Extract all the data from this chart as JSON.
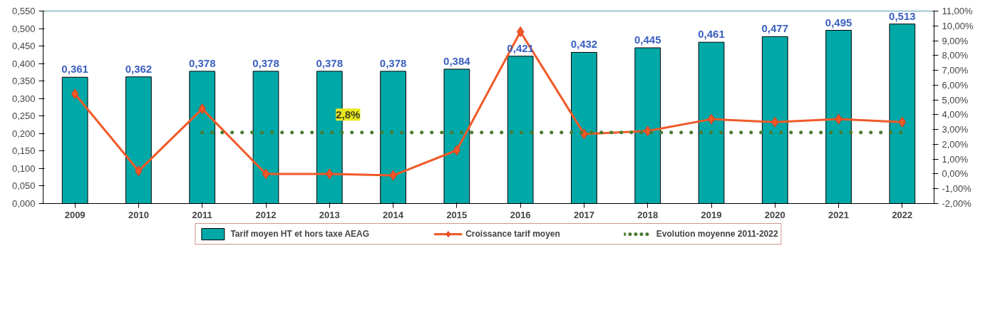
{
  "chart_data": {
    "type": "bar",
    "categories": [
      "2009",
      "2010",
      "2011",
      "2012",
      "2013",
      "2014",
      "2015",
      "2016",
      "2017",
      "2018",
      "2019",
      "2020",
      "2021",
      "2022"
    ],
    "series": [
      {
        "name": "Tarif moyen HT et hors taxe AEAG",
        "type": "bar",
        "color": "#00a8a8",
        "values": [
          0.361,
          0.362,
          0.378,
          0.378,
          0.378,
          0.378,
          0.384,
          0.421,
          0.432,
          0.445,
          0.461,
          0.477,
          0.495,
          0.513
        ],
        "value_labels": [
          "0,361",
          "0,362",
          "0,378",
          "0,378",
          "0,378",
          "0,378",
          "0,384",
          "0,421",
          "0,432",
          "0,445",
          "0,461",
          "0,477",
          "0,495",
          "0,513"
        ]
      },
      {
        "name": "Croissance tarif moyen",
        "type": "line",
        "axis": "y2",
        "color": "#f05a28",
        "marker": "diamond",
        "line_style": "solid",
        "values": [
          5.4,
          0.2,
          4.4,
          0.0,
          0.0,
          -0.1,
          1.6,
          9.6,
          2.7,
          2.9,
          3.7,
          3.5,
          3.7,
          3.5
        ]
      },
      {
        "name": "Evolution moyenne 2011-2022",
        "type": "line",
        "axis": "y2",
        "color": "#4a7a30",
        "marker": "none",
        "line_style": "dotted",
        "values": [
          null,
          null,
          2.8,
          2.8,
          2.8,
          2.8,
          2.8,
          2.8,
          2.8,
          2.8,
          2.8,
          2.8,
          2.8,
          2.8
        ]
      }
    ],
    "annotations": [
      "2,8%"
    ],
    "ylim": [
      0,
      0.55
    ],
    "yticks": [
      {
        "value": 0,
        "label": "0,000"
      },
      {
        "value": 0.05,
        "label": "0,050"
      },
      {
        "value": 0.1,
        "label": "0,100"
      },
      {
        "value": 0.15,
        "label": "0,150"
      },
      {
        "value": 0.2,
        "label": "0,200"
      },
      {
        "value": 0.25,
        "label": "0,250"
      },
      {
        "value": 0.3,
        "label": "0,300"
      },
      {
        "value": 0.35,
        "label": "0,350"
      },
      {
        "value": 0.4,
        "label": "0,400"
      },
      {
        "value": 0.45,
        "label": "0,450"
      },
      {
        "value": 0.5,
        "label": "0,500"
      },
      {
        "value": 0.55,
        "label": "0,550"
      }
    ],
    "y2lim": [
      -2,
      11
    ],
    "y2ticks": [
      {
        "value": -2,
        "label": "-2,00%"
      },
      {
        "value": -1,
        "label": "-1,00%"
      },
      {
        "value": 0,
        "label": "0,00%"
      },
      {
        "value": 1,
        "label": "1,00%"
      },
      {
        "value": 2,
        "label": "2,00%"
      },
      {
        "value": 3,
        "label": "3,00%"
      },
      {
        "value": 4,
        "label": "4,00%"
      },
      {
        "value": 5,
        "label": "5,00%"
      },
      {
        "value": 6,
        "label": "6,00%"
      },
      {
        "value": 7,
        "label": "7,00%"
      },
      {
        "value": 8,
        "label": "8,00%"
      },
      {
        "value": 9,
        "label": "9,00%"
      },
      {
        "value": 10,
        "label": "10,00%"
      },
      {
        "value": 11,
        "label": "11,00%"
      }
    ],
    "grid": false,
    "legend": "bottom"
  }
}
